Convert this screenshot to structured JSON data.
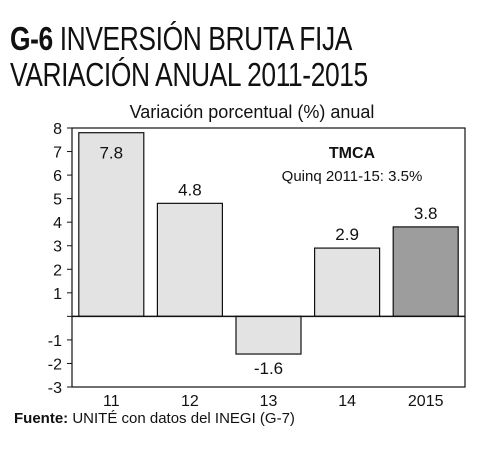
{
  "header": {
    "figure_id": "G-6",
    "title_line1": "INVERSIÓN BRUTA FIJA",
    "title_line2": "VARIACIÓN ANUAL 2011-2015"
  },
  "chart_data": {
    "type": "bar",
    "subtitle": "Variación porcentual (%) anual",
    "categories": [
      "11",
      "12",
      "13",
      "14",
      "2015"
    ],
    "values": [
      7.8,
      4.8,
      -1.6,
      2.9,
      3.8
    ],
    "value_labels": [
      "7.8",
      "4.8",
      "-1.6",
      "2.9",
      "3.8"
    ],
    "ylim": [
      -3,
      8
    ],
    "yticks": [
      8,
      7,
      6,
      5,
      4,
      3,
      2,
      1,
      0,
      -1,
      -2,
      -3
    ],
    "ytick_labels": [
      "8",
      "7",
      "6",
      "5",
      "4",
      "3",
      "2",
      "1",
      "",
      "-1",
      "-2",
      "-3"
    ],
    "grid": false,
    "colors": {
      "bar": "#e3e3e3",
      "highlight": "#9d9d9d",
      "stroke": "#111111"
    },
    "highlight_index": 4,
    "annotation": {
      "title": "TMCA",
      "text": "Quinq 2011-15:  3.5%"
    }
  },
  "footer": {
    "source_label": "Fuente:",
    "source_text": " UNITÉ con datos del INEGI (G-7)"
  }
}
